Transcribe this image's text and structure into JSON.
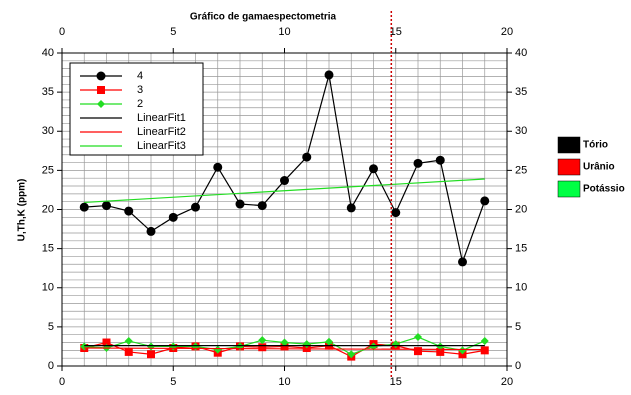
{
  "chart_data": {
    "type": "line",
    "title": "Gráfico de gamaespectometria",
    "ylabel": "U,Th,K (ppm)",
    "xlim": [
      0,
      20
    ],
    "ylim": [
      0,
      40
    ],
    "xticks": [
      0,
      5,
      10,
      15,
      20
    ],
    "yticks": [
      0,
      5,
      10,
      15,
      20,
      25,
      30,
      35,
      40
    ],
    "grid": true,
    "grid_step": 1,
    "legend_position": "upper left",
    "series": [
      {
        "name": "4",
        "color": "#000000",
        "marker": "circle",
        "x": [
          1,
          2,
          3,
          4,
          5,
          6,
          7,
          8,
          9,
          10,
          11,
          12,
          13,
          14,
          15,
          16,
          17,
          18,
          19
        ],
        "values": [
          20.3,
          20.5,
          19.8,
          17.2,
          19.0,
          20.3,
          25.4,
          20.7,
          20.5,
          23.7,
          26.7,
          37.2,
          20.2,
          25.2,
          19.6,
          25.9,
          26.3,
          13.3,
          21.1
        ]
      },
      {
        "name": "3",
        "color": "#ff0000",
        "marker": "square",
        "x": [
          1,
          2,
          3,
          4,
          5,
          6,
          7,
          8,
          9,
          10,
          11,
          12,
          13,
          14,
          15,
          16,
          17,
          18,
          19
        ],
        "values": [
          2.3,
          3.0,
          1.8,
          1.5,
          2.3,
          2.5,
          1.7,
          2.5,
          2.4,
          2.5,
          2.3,
          2.6,
          1.2,
          2.8,
          2.6,
          1.9,
          1.8,
          1.5,
          2.0
        ]
      },
      {
        "name": "2",
        "color": "#22dd22",
        "marker": "diamond",
        "x": [
          1,
          2,
          3,
          4,
          5,
          6,
          7,
          8,
          9,
          10,
          11,
          12,
          13,
          14,
          15,
          16,
          17,
          18,
          19
        ],
        "values": [
          2.5,
          2.3,
          3.2,
          2.5,
          2.5,
          2.5,
          2.1,
          2.5,
          3.3,
          3.0,
          2.8,
          3.1,
          1.5,
          2.5,
          2.8,
          3.7,
          2.5,
          2.0,
          3.2
        ]
      },
      {
        "name": "LinearFit1",
        "color": "#000000",
        "x": [
          1,
          19
        ],
        "values": [
          2.6,
          2.6
        ]
      },
      {
        "name": "LinearFit2",
        "color": "#ff0000",
        "x": [
          1,
          19
        ],
        "values": [
          2.3,
          2.1
        ]
      },
      {
        "name": "LinearFit3",
        "color": "#22dd22",
        "x": [
          1,
          19
        ],
        "values": [
          20.9,
          23.9
        ]
      }
    ],
    "vline": {
      "x": 14.8,
      "color": "#cc0000"
    },
    "side_legend": [
      {
        "label": "Tório",
        "color": "#000000"
      },
      {
        "label": "Urânio",
        "color": "#ff0000"
      },
      {
        "label": "Potássio",
        "color": "#00ff44"
      }
    ]
  }
}
